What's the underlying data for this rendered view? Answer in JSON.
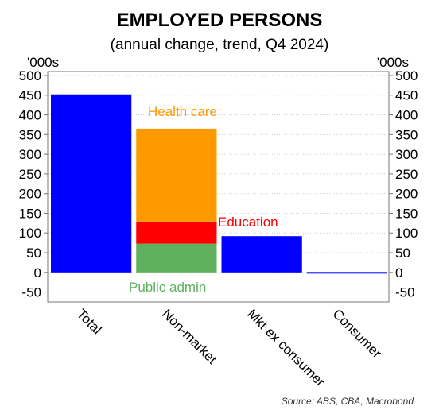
{
  "chart_data": {
    "type": "bar",
    "title": "EMPLOYED PERSONS",
    "subtitle": "(annual change, trend, Q4 2024)",
    "unit_left": "'000s",
    "unit_right": "'000s",
    "ylim": [
      -75,
      510
    ],
    "yticks": [
      -50,
      0,
      50,
      100,
      150,
      200,
      250,
      300,
      350,
      400,
      450,
      500
    ],
    "grid": true,
    "categories": [
      "Total",
      "Non-market",
      "Mkt ex consumer",
      "Consumer"
    ],
    "bars": [
      {
        "category": "Total",
        "segments": [
          {
            "value": 452,
            "color": "#0000ff"
          }
        ]
      },
      {
        "category": "Non-market",
        "segments": [
          {
            "name": "Public admin",
            "value": 73,
            "color": "#5fb05f"
          },
          {
            "name": "Education",
            "value": 56,
            "color": "#ff0000"
          },
          {
            "name": "Health care",
            "value": 236,
            "color": "#ff9900"
          }
        ]
      },
      {
        "category": "Mkt ex consumer",
        "segments": [
          {
            "value": 92,
            "color": "#0000ff"
          }
        ]
      },
      {
        "category": "Consumer",
        "segments": [
          {
            "value": -2,
            "color": "#0000ff"
          }
        ]
      }
    ],
    "annotations": [
      {
        "text": "Health care",
        "color": "#ff9900"
      },
      {
        "text": "Education",
        "color": "#ff0000"
      },
      {
        "text": "Public admin",
        "color": "#5fb05f"
      }
    ]
  },
  "source": "Source: ABS, CBA, Macrobond"
}
